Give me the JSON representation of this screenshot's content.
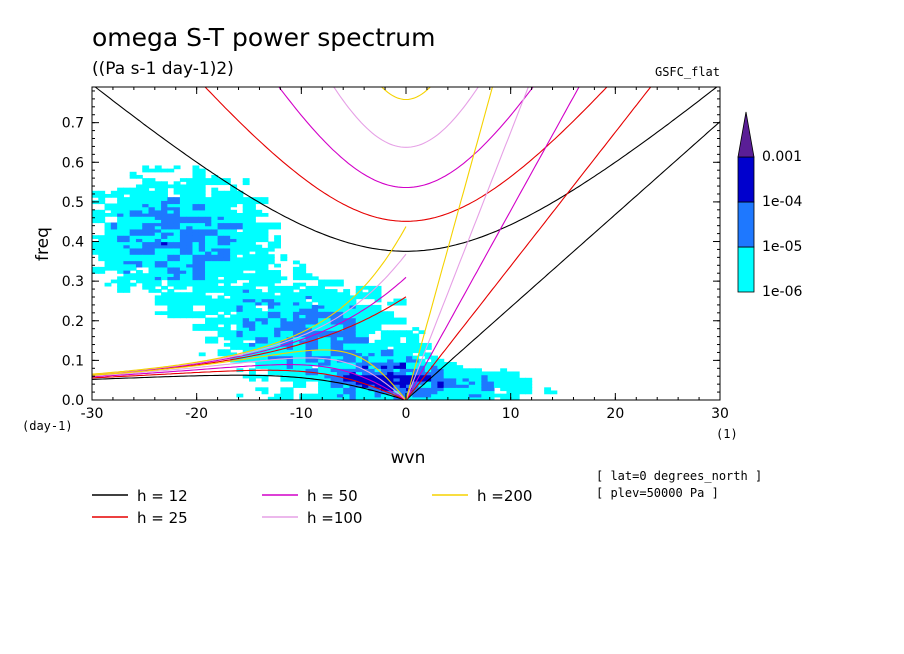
{
  "chart_data": {
    "type": "contour",
    "title": "omega S-T power spectrum",
    "units": "((Pa s-1 day-1)2)",
    "model_label": "GSFC_flat",
    "xlabel": "wvn",
    "ylabel": "freq",
    "x_unit": "(1)",
    "y_unit": "(day-1)",
    "xlim": [
      -30,
      30
    ],
    "ylim": [
      0,
      0.79
    ],
    "x_ticks": [
      -30,
      -20,
      -10,
      0,
      10,
      20,
      30
    ],
    "x_tick_labels": [
      "-30",
      "-20",
      "-10",
      "0",
      "10",
      "20",
      "30"
    ],
    "y_ticks": [
      0,
      0.1,
      0.2,
      0.3,
      0.4,
      0.5,
      0.6,
      0.7
    ],
    "y_tick_labels": [
      "0.0",
      "0.1",
      "0.2",
      "0.3",
      "0.4",
      "0.5",
      "0.6",
      "0.7"
    ],
    "colorbar": {
      "levels": [
        "1e-06",
        "1e-05",
        "1e-04",
        "0.001"
      ],
      "colors": [
        "#00ffff",
        "#1e78ff",
        "#0000cd",
        "#5a1e96"
      ]
    },
    "dispersion_curves": [
      {
        "name": "h = 12",
        "h": 12,
        "color": "#000000"
      },
      {
        "name": "h = 25",
        "h": 25,
        "color": "#e60000"
      },
      {
        "name": "h = 50",
        "h": 50,
        "color": "#d200c8"
      },
      {
        "name": "h =100",
        "h": 100,
        "color": "#e6a0e6"
      },
      {
        "name": "h =200",
        "h": 200,
        "color": "#f5d200"
      }
    ],
    "annotations": [
      "[ lat=0 degrees_north ]",
      "[ plev=50000 Pa ]"
    ]
  }
}
